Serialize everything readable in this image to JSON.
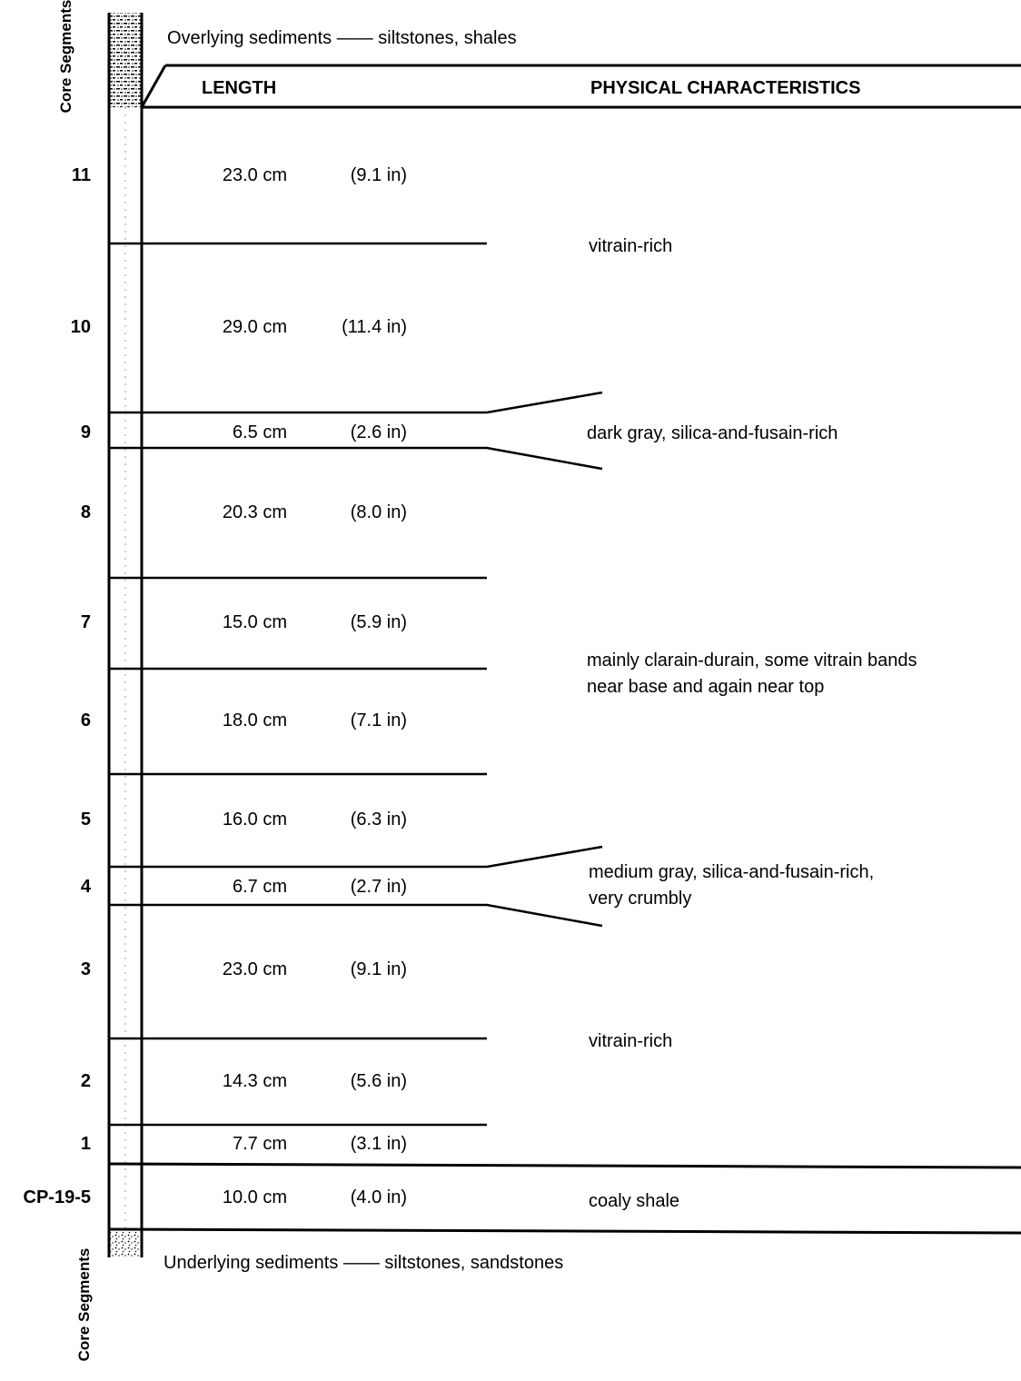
{
  "side_label": "Core Segments",
  "overlying": "Overlying sediments —— siltstones, shales",
  "underlying": "Underlying sediments —— siltstones, sandstones",
  "headers": {
    "length": "LENGTH",
    "characteristics": "PHYSICAL CHARACTERISTICS"
  },
  "segments": [
    {
      "id": "11",
      "cm": "23.0 cm",
      "in": "(9.1 in)"
    },
    {
      "id": "10",
      "cm": "29.0 cm",
      "in": "(11.4 in)"
    },
    {
      "id": "9",
      "cm": "6.5 cm",
      "in": "(2.6 in)"
    },
    {
      "id": "8",
      "cm": "20.3 cm",
      "in": "(8.0 in)"
    },
    {
      "id": "7",
      "cm": "15.0 cm",
      "in": "(5.9 in)"
    },
    {
      "id": "6",
      "cm": "18.0 cm",
      "in": "(7.1 in)"
    },
    {
      "id": "5",
      "cm": "16.0 cm",
      "in": "(6.3 in)"
    },
    {
      "id": "4",
      "cm": "6.7 cm",
      "in": "(2.7 in)"
    },
    {
      "id": "3",
      "cm": "23.0 cm",
      "in": "(9.1 in)"
    },
    {
      "id": "2",
      "cm": "14.3 cm",
      "in": "(5.6 in)"
    },
    {
      "id": "1",
      "cm": "7.7 cm",
      "in": "(3.1 in)"
    },
    {
      "id": "CP-19-5",
      "cm": "10.0 cm",
      "in": "(4.0 in)"
    }
  ],
  "characteristics": [
    {
      "lines": [
        "vitrain-rich"
      ]
    },
    {
      "lines": [
        "dark gray, silica-and-fusain-rich"
      ]
    },
    {
      "lines": [
        "mainly clarain-durain, some vitrain bands",
        "near base and again near top"
      ]
    },
    {
      "lines": [
        "medium gray, silica-and-fusain-rich,",
        "very crumbly"
      ]
    },
    {
      "lines": [
        "vitrain-rich"
      ]
    },
    {
      "lines": [
        "coaly shale"
      ]
    }
  ]
}
